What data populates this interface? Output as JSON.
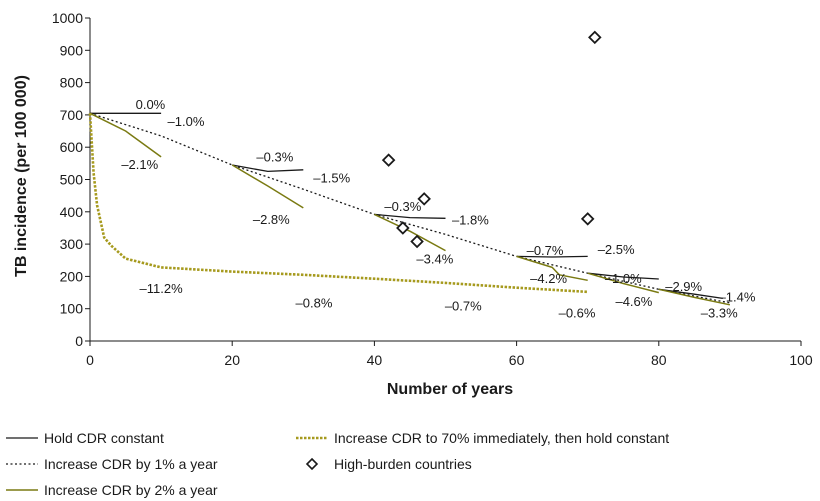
{
  "chart_data": {
    "type": "line",
    "title": "",
    "xlabel": "Number of years",
    "ylabel": "TB incidence (per 100 000)",
    "xlim": [
      0,
      100
    ],
    "ylim": [
      0,
      1000
    ],
    "x_ticks": [
      "0",
      "20",
      "40",
      "60",
      "80",
      "100"
    ],
    "y_ticks": [
      "0",
      "100",
      "200",
      "300",
      "400",
      "500",
      "600",
      "700",
      "800",
      "900",
      "1000"
    ],
    "colors": {
      "hold": "#1a1a1a",
      "one_percent": "#1a1a1a",
      "two_percent": "#7a7a12",
      "seventy": "#a69a1e",
      "markers": "#1a1a1a"
    },
    "series": [
      {
        "key": "one_percent",
        "name": "Increase CDR by 1% a year",
        "style": "dotted",
        "segments": [
          {
            "x": [
              0,
              10,
              20,
              30,
              40,
              50,
              60,
              70,
              80,
              90
            ],
            "y": [
              705,
              635,
              545,
              470,
              392,
              330,
              262,
              210,
              160,
              118
            ]
          }
        ]
      },
      {
        "key": "hold",
        "name": "Hold CDR constant",
        "style": "solid",
        "segments": [
          {
            "x": [
              0,
              10
            ],
            "y": [
              705,
              705
            ]
          },
          {
            "x": [
              20,
              25,
              30
            ],
            "y": [
              545,
              525,
              530
            ]
          },
          {
            "x": [
              40,
              45,
              50
            ],
            "y": [
              392,
              382,
              380
            ]
          },
          {
            "x": [
              60,
              65,
              70
            ],
            "y": [
              262,
              260,
              262
            ]
          },
          {
            "x": [
              70,
              75,
              80
            ],
            "y": [
              210,
              198,
              192
            ]
          },
          {
            "x": [
              80,
              85,
              89
            ],
            "y": [
              160,
              145,
              132
            ]
          }
        ]
      },
      {
        "key": "two_percent",
        "name": "Increase CDR by 2% a year",
        "style": "solid",
        "segments": [
          {
            "x": [
              0,
              5,
              10
            ],
            "y": [
              705,
              650,
              570
            ]
          },
          {
            "x": [
              20,
              25,
              30
            ],
            "y": [
              545,
              480,
              412
            ]
          },
          {
            "x": [
              40,
              45,
              50
            ],
            "y": [
              392,
              340,
              280
            ]
          },
          {
            "x": [
              60,
              65,
              66,
              70
            ],
            "y": [
              262,
              228,
              205,
              188
            ]
          },
          {
            "x": [
              70,
              75,
              80
            ],
            "y": [
              210,
              178,
              150
            ]
          },
          {
            "x": [
              80,
              85,
              90
            ],
            "y": [
              160,
              135,
              112
            ]
          }
        ]
      },
      {
        "key": "seventy",
        "name": "Increase CDR to 70% immediately, then hold constant",
        "style": "dashed-bold",
        "segments": [
          {
            "x": [
              0,
              0.5,
              1,
              2,
              3,
              5,
              10,
              20,
              30,
              40,
              50,
              60,
              70
            ],
            "y": [
              705,
              520,
              420,
              320,
              295,
              255,
              228,
              215,
              205,
              193,
              180,
              165,
              152
            ]
          }
        ]
      },
      {
        "key": "markers",
        "name": "High-burden countries",
        "style": "diamond-markers",
        "points": [
          {
            "x": 42,
            "y": 560
          },
          {
            "x": 47,
            "y": 440
          },
          {
            "x": 44,
            "y": 350
          },
          {
            "x": 46,
            "y": 308
          },
          {
            "x": 70,
            "y": 378
          },
          {
            "x": 71,
            "y": 940
          }
        ]
      }
    ],
    "annotations": [
      {
        "text": "0.0%",
        "x": 8.5,
        "y": 718
      },
      {
        "text": "–1.0%",
        "x": 13.5,
        "y": 665
      },
      {
        "text": "–2.1%",
        "x": 7,
        "y": 532
      },
      {
        "text": "–0.3%",
        "x": 26,
        "y": 555
      },
      {
        "text": "–1.5%",
        "x": 34,
        "y": 490
      },
      {
        "text": "–2.8%",
        "x": 25.5,
        "y": 362
      },
      {
        "text": "–0.3%",
        "x": 44,
        "y": 403
      },
      {
        "text": "–1.8%",
        "x": 53.5,
        "y": 360
      },
      {
        "text": "–3.4%",
        "x": 48.5,
        "y": 240
      },
      {
        "text": "–0.7%",
        "x": 64,
        "y": 267
      },
      {
        "text": "–2.5%",
        "x": 74,
        "y": 270
      },
      {
        "text": "–4.2%",
        "x": 64.5,
        "y": 180
      },
      {
        "text": "–1.0%",
        "x": 75,
        "y": 180
      },
      {
        "text": "–2.9%",
        "x": 83.5,
        "y": 155
      },
      {
        "text": "–1.4%",
        "x": 91,
        "y": 122
      },
      {
        "text": "–4.6%",
        "x": 76.5,
        "y": 108
      },
      {
        "text": "–3.3%",
        "x": 88.5,
        "y": 72
      },
      {
        "text": "–11.2%",
        "x": 10,
        "y": 148
      },
      {
        "text": "–0.8%",
        "x": 31.5,
        "y": 103
      },
      {
        "text": "–0.7%",
        "x": 52.5,
        "y": 95
      },
      {
        "text": "–0.6%",
        "x": 68.5,
        "y": 73
      }
    ],
    "legend": {
      "placement": "bottom",
      "entries": [
        {
          "key": "hold",
          "label": "Hold CDR constant"
        },
        {
          "key": "one_percent",
          "label": "Increase CDR by 1% a year"
        },
        {
          "key": "two_percent",
          "label": "Increase CDR by 2% a year"
        },
        {
          "key": "seventy",
          "label": "Increase CDR to 70% immediately, then hold constant"
        },
        {
          "key": "markers",
          "label": "High-burden countries"
        }
      ]
    }
  }
}
